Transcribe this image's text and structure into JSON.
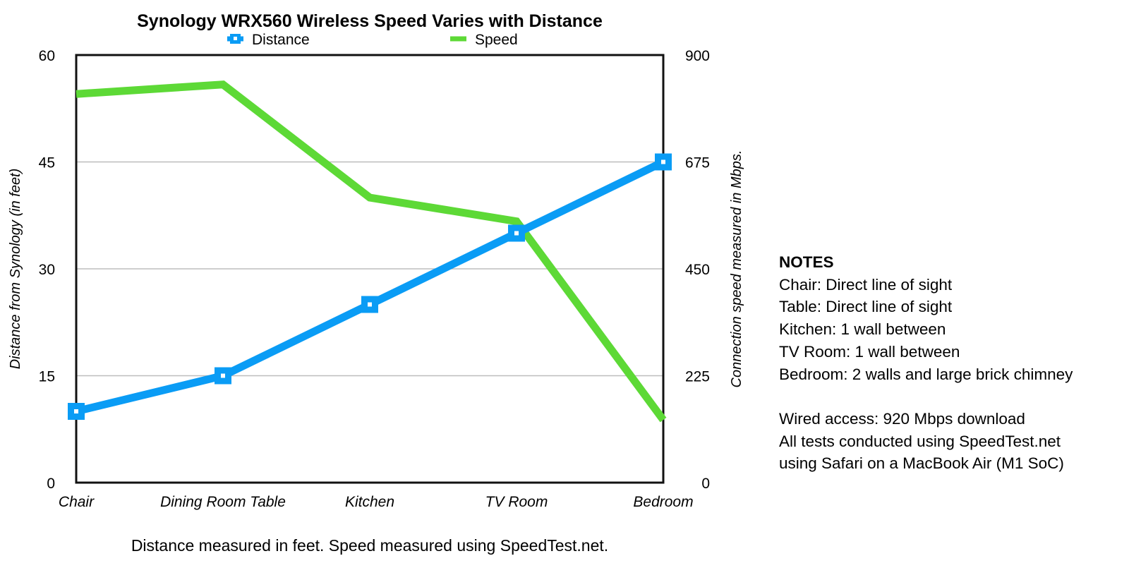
{
  "chart_data": {
    "type": "line",
    "title": "Synology WRX560 Wireless Speed Varies with Distance",
    "categories": [
      "Chair",
      "Dining Room Table",
      "Kitchen",
      "TV Room",
      "Bedroom"
    ],
    "series": [
      {
        "name": "Distance",
        "axis": "left",
        "color": "#0a9cf5",
        "marker": "square",
        "values": [
          10,
          15,
          25,
          35,
          45
        ]
      },
      {
        "name": "Speed",
        "axis": "right",
        "color": "#5dd936",
        "marker": "none",
        "values": [
          818,
          838,
          600,
          550,
          132
        ]
      }
    ],
    "ylabel": "Distance from Synology (in feet)",
    "y2label": "Connection speed measured in Mbps.",
    "xlabel": "Distance measured in feet. Speed measured using SpeedTest.net.",
    "ylim": [
      0,
      60
    ],
    "y2lim": [
      0,
      900
    ],
    "yticks": [
      0,
      15,
      30,
      45,
      60
    ],
    "y2ticks": [
      0,
      225,
      450,
      675,
      900
    ],
    "grid": true,
    "legend_position": "top-center"
  },
  "notes": {
    "heading": "NOTES",
    "lines": [
      "Chair: Direct line of sight",
      "Table: Direct line of sight",
      "Kitchen: 1 wall between",
      "TV Room: 1 wall between",
      "Bedroom: 2 walls and large brick chimney"
    ],
    "extra_lines": [
      "Wired access: 920 Mbps download",
      "All tests conducted using SpeedTest.net",
      "using Safari on a MacBook Air (M1 SoC)"
    ]
  }
}
